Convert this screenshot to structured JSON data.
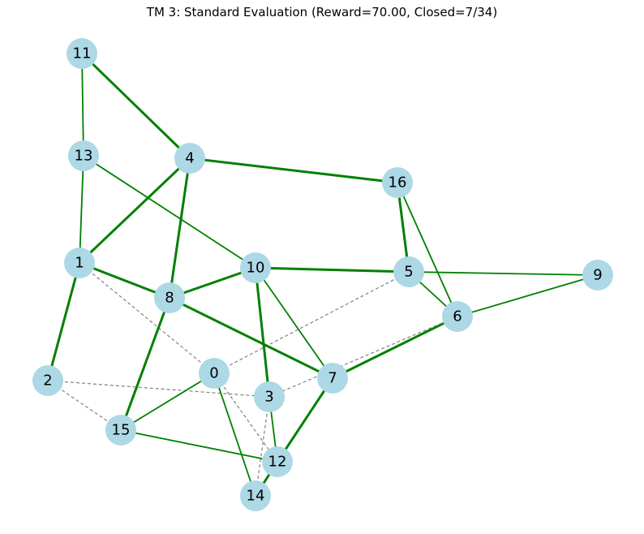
{
  "title": "TM 3: Standard Evaluation (Reward=70.00, Closed=7/34)",
  "colors": {
    "node_fill": "#add8e6",
    "edge_green": "#008000",
    "edge_dashed": "#808080",
    "label": "#000000"
  },
  "nodes": [
    {
      "id": "0"
    },
    {
      "id": "1"
    },
    {
      "id": "2"
    },
    {
      "id": "3"
    },
    {
      "id": "4"
    },
    {
      "id": "5"
    },
    {
      "id": "6"
    },
    {
      "id": "7"
    },
    {
      "id": "8"
    },
    {
      "id": "9"
    },
    {
      "id": "10"
    },
    {
      "id": "11"
    },
    {
      "id": "12"
    },
    {
      "id": "13"
    },
    {
      "id": "14"
    },
    {
      "id": "15"
    },
    {
      "id": "16"
    }
  ],
  "edges": [
    {
      "source": "11",
      "target": "4",
      "style": "green-thick"
    },
    {
      "source": "11",
      "target": "13",
      "style": "green"
    },
    {
      "source": "13",
      "target": "1",
      "style": "green"
    },
    {
      "source": "13",
      "target": "10",
      "style": "green"
    },
    {
      "source": "4",
      "target": "16",
      "style": "green-thick"
    },
    {
      "source": "4",
      "target": "1",
      "style": "green-thick"
    },
    {
      "source": "4",
      "target": "8",
      "style": "green-thick"
    },
    {
      "source": "16",
      "target": "5",
      "style": "green-thick"
    },
    {
      "source": "16",
      "target": "6",
      "style": "green"
    },
    {
      "source": "1",
      "target": "8",
      "style": "green-thick"
    },
    {
      "source": "1",
      "target": "2",
      "style": "green-thick"
    },
    {
      "source": "1",
      "target": "0",
      "style": "dashed"
    },
    {
      "source": "10",
      "target": "8",
      "style": "green-thick"
    },
    {
      "source": "10",
      "target": "5",
      "style": "green-thick"
    },
    {
      "source": "10",
      "target": "3",
      "style": "green-thick"
    },
    {
      "source": "10",
      "target": "7",
      "style": "green"
    },
    {
      "source": "5",
      "target": "9",
      "style": "green"
    },
    {
      "source": "5",
      "target": "6",
      "style": "green"
    },
    {
      "source": "5",
      "target": "0",
      "style": "dashed"
    },
    {
      "source": "9",
      "target": "6",
      "style": "green"
    },
    {
      "source": "8",
      "target": "7",
      "style": "green-thick"
    },
    {
      "source": "8",
      "target": "15",
      "style": "green-thick"
    },
    {
      "source": "6",
      "target": "7",
      "style": "green-thick"
    },
    {
      "source": "6",
      "target": "3",
      "style": "dashed"
    },
    {
      "source": "7",
      "target": "12",
      "style": "green-thick"
    },
    {
      "source": "2",
      "target": "3",
      "style": "dashed"
    },
    {
      "source": "2",
      "target": "15",
      "style": "dashed"
    },
    {
      "source": "0",
      "target": "15",
      "style": "green"
    },
    {
      "source": "0",
      "target": "14",
      "style": "green"
    },
    {
      "source": "0",
      "target": "12",
      "style": "dashed"
    },
    {
      "source": "3",
      "target": "12",
      "style": "green"
    },
    {
      "source": "3",
      "target": "14",
      "style": "dashed"
    },
    {
      "source": "15",
      "target": "12",
      "style": "green"
    },
    {
      "source": "12",
      "target": "14",
      "style": "green-thick"
    }
  ]
}
